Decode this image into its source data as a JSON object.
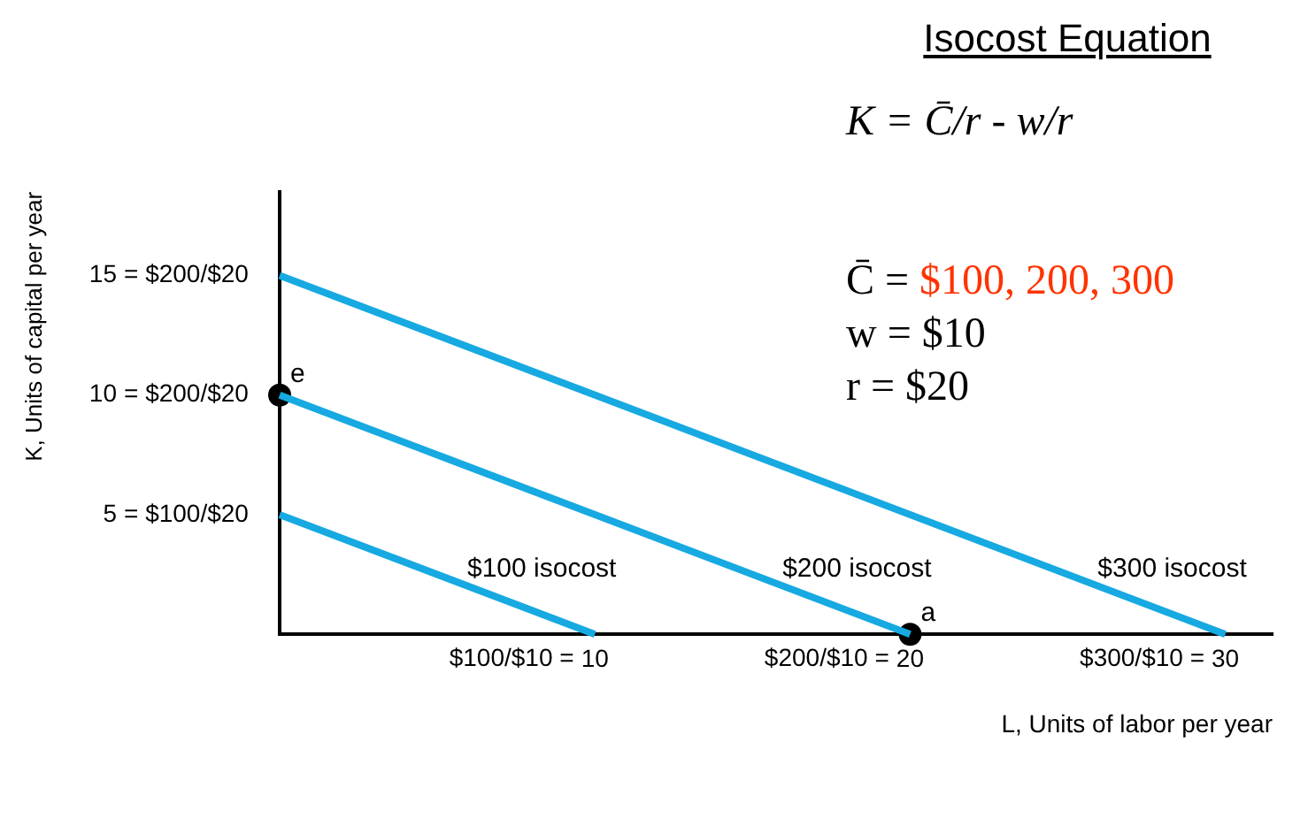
{
  "chart_data": {
    "type": "line",
    "xlabel": "L, Units of labor per year",
    "ylabel": "K, Units of capital per year",
    "xlim": [
      0,
      31.5
    ],
    "ylim": [
      0,
      18.5
    ],
    "xticks": [
      10,
      20,
      30
    ],
    "yticks": [
      5,
      10,
      15
    ],
    "series": [
      {
        "type": "line",
        "color": "#17a9e1",
        "x": [
          0,
          10
        ],
        "values": [
          5,
          0
        ]
      },
      {
        "type": "line",
        "color": "#17a9e1",
        "x": [
          0,
          20
        ],
        "values": [
          10,
          0
        ]
      },
      {
        "type": "line",
        "color": "#17a9e1",
        "x": [
          0,
          30
        ],
        "values": [
          15,
          0
        ]
      },
      {
        "type": "scatter",
        "color": "#000000",
        "marker": "circle",
        "x": [
          0,
          20
        ],
        "values": [
          10,
          0
        ]
      }
    ],
    "marker": "none",
    "line_style": "solid",
    "grid": false,
    "legend": false,
    "annotations": [
      "Isocost Equation",
      "K = C̄/r - w/r",
      "C̄ =",
      "$100, 200, 300",
      "w = $10",
      "r = $20",
      "= $100/$20",
      "= $200/$20",
      "= $200/$20",
      "$100/$10 =",
      "$200/$10 =",
      "$300/$10 =",
      "$100 isocost",
      "$200 isocost",
      "$300 isocost",
      {
        "text": "e",
        "x": 0,
        "y": 10
      },
      {
        "text": "a",
        "x": 20,
        "y": 0
      }
    ]
  }
}
